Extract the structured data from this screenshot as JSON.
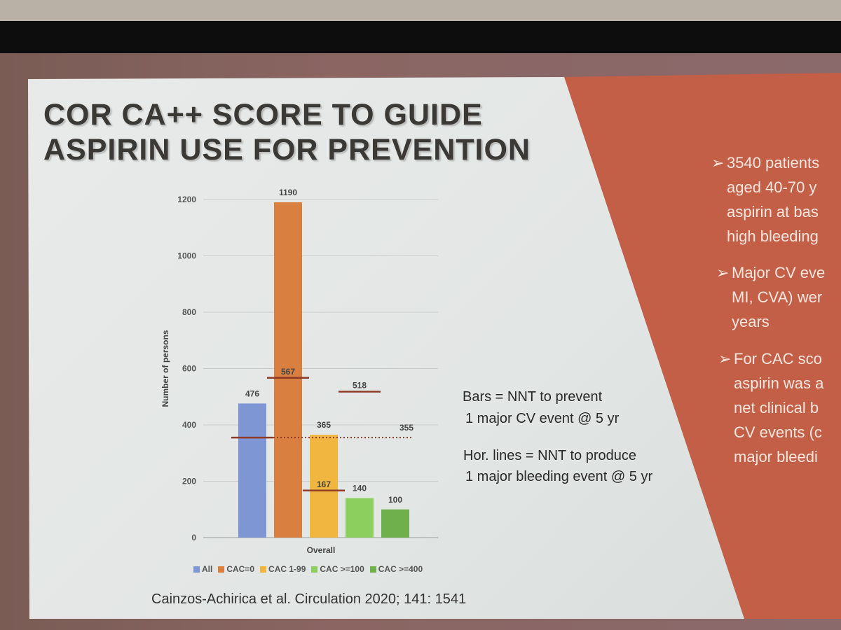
{
  "slide": {
    "title_line1": "COR CA++ SCORE TO GUIDE",
    "title_line2": "ASPIRIN USE FOR PREVENTION",
    "note_bars_line1": "Bars = NNT to prevent",
    "note_bars_line2": "1 major CV event @ 5 yr",
    "note_lines_line1": "Hor. lines = NNT to produce",
    "note_lines_line2": "1 major bleeding event @ 5 yr",
    "citation": "Cainzos-Achirica et al. Circulation 2020; 141: 1541",
    "bullets": [
      {
        "lines": [
          "3540 patients",
          "aged 40-70 y",
          "aspirin at bas",
          "high bleeding"
        ]
      },
      {
        "lines": [
          "Major CV eve",
          "MI, CVA) wer",
          "years"
        ]
      },
      {
        "lines": [
          "For CAC sco",
          "aspirin was a",
          "net clinical b",
          "CV events (c",
          "major bleedi"
        ]
      }
    ],
    "bullet_marker": "➢"
  },
  "chart_data": {
    "type": "bar",
    "xlabel": "Overall",
    "ylabel": "Number of persons",
    "ylim": [
      0,
      1200
    ],
    "yticks": [
      0,
      200,
      400,
      600,
      800,
      1000,
      1200
    ],
    "grid": true,
    "legend_position": "bottom",
    "series": [
      {
        "name": "All",
        "value": 476,
        "color": "#7f96d4",
        "bleeding_nnt": 355
      },
      {
        "name": "CAC=0",
        "value": 1190,
        "color": "#d98040",
        "bleeding_nnt": 567
      },
      {
        "name": "CAC 1-99",
        "value": 365,
        "color": "#f0b640",
        "bleeding_nnt": 167
      },
      {
        "name": "CAC >=100",
        "value": 140,
        "color": "#8ccf5f",
        "bleeding_nnt": 518
      },
      {
        "name": "CAC >=400",
        "value": 100,
        "color": "#6fb04c",
        "bleeding_nnt": null
      }
    ],
    "reference_line": {
      "value": 355,
      "label": "355",
      "style": "dotted"
    },
    "line_color": "#8f3a26"
  }
}
